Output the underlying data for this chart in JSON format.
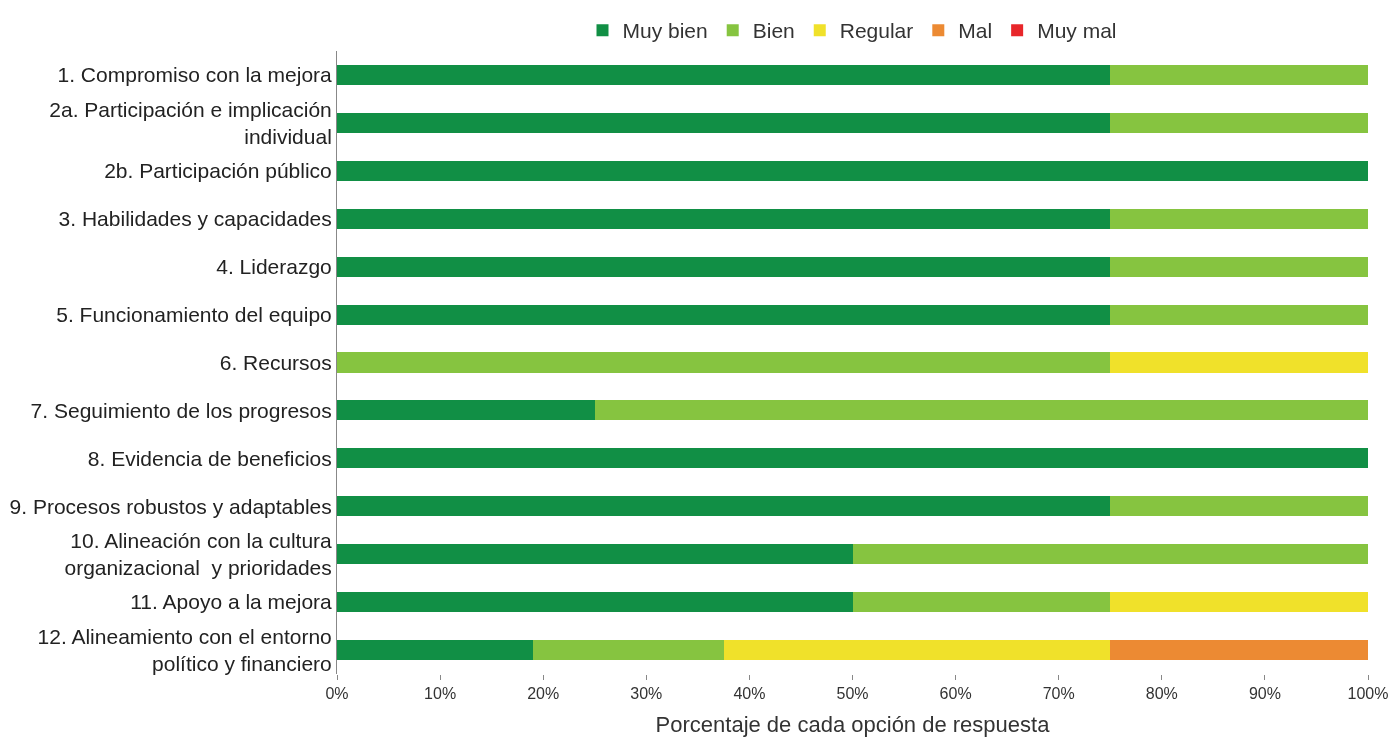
{
  "chart_data": {
    "type": "bar",
    "orientation": "horizontal",
    "stacked": true,
    "xlabel": "Porcentaje de cada opción de respuesta",
    "categories": [
      "1. Compromiso con la mejora",
      "2a. Participación e implicación\nindividual",
      "2b. Participación público",
      "3. Habilidades y capacidades",
      "4. Liderazgo",
      "5. Funcionamiento del equipo",
      "6. Recursos",
      "7. Seguimiento de los progresos",
      "8. Evidencia de beneficios",
      "9. Procesos robustos y adaptables",
      "10. Alineación con la cultura\norganizacional  y prioridades",
      "11. Apoyo a la mejora",
      "12. Alineamiento con el entorno\npolítico y financiero"
    ],
    "series": [
      {
        "name": "Muy bien",
        "color": "#118f45",
        "values": [
          75,
          75,
          100,
          75,
          75,
          75,
          0,
          25,
          100,
          75,
          50,
          50,
          19
        ]
      },
      {
        "name": "Bien",
        "color": "#86c440",
        "values": [
          25,
          25,
          0,
          25,
          25,
          25,
          75,
          75,
          0,
          25,
          50,
          25,
          18.5
        ]
      },
      {
        "name": "Regular",
        "color": "#f0e12a",
        "values": [
          0,
          0,
          0,
          0,
          0,
          0,
          25,
          0,
          0,
          0,
          0,
          25,
          37.5
        ]
      },
      {
        "name": "Mal",
        "color": "#ec8a33",
        "values": [
          0,
          0,
          0,
          0,
          0,
          0,
          0,
          0,
          0,
          0,
          0,
          0,
          25
        ]
      },
      {
        "name": "Muy mal",
        "color": "#e8262a",
        "values": [
          0,
          0,
          0,
          0,
          0,
          0,
          0,
          0,
          0,
          0,
          0,
          0,
          0
        ]
      }
    ],
    "xlim": [
      0,
      100
    ],
    "xticks": [
      {
        "value": 0,
        "label": "0%"
      },
      {
        "value": 10,
        "label": "10%"
      },
      {
        "value": 20,
        "label": "20%"
      },
      {
        "value": 30,
        "label": "30%"
      },
      {
        "value": 40,
        "label": "40%"
      },
      {
        "value": 50,
        "label": "50%"
      },
      {
        "value": 60,
        "label": "60%"
      },
      {
        "value": 70,
        "label": "70%"
      },
      {
        "value": 80,
        "label": "80%"
      },
      {
        "value": 90,
        "label": "90%"
      },
      {
        "value": 100,
        "label": "100%"
      }
    ],
    "legend": "top"
  }
}
